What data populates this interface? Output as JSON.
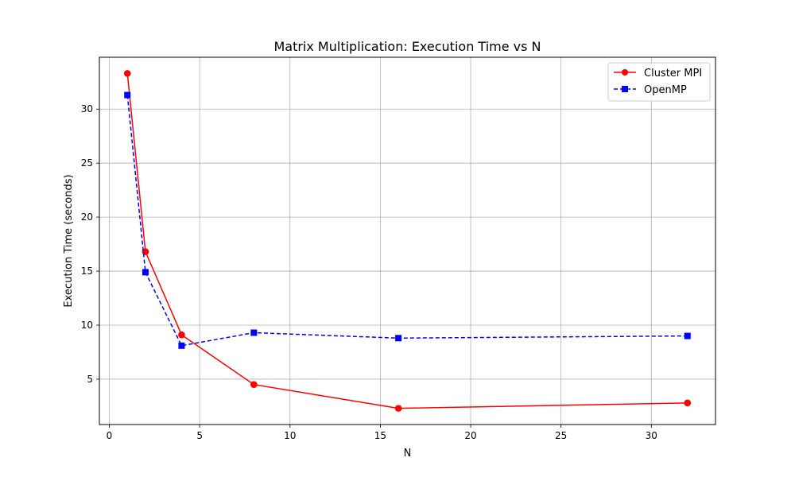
{
  "chart_data": {
    "type": "line",
    "title": "Matrix Multiplication: Execution Time vs N",
    "xlabel": "N",
    "ylabel": "Execution Time (seconds)",
    "xlim": [
      -0.55,
      33.55
    ],
    "ylim": [
      0.8,
      34.8
    ],
    "xticks": [
      0,
      5,
      10,
      15,
      20,
      25,
      30
    ],
    "yticks": [
      5,
      10,
      15,
      20,
      25,
      30
    ],
    "grid": true,
    "legend_position": "top-right",
    "x": [
      1,
      2,
      4,
      8,
      16,
      32
    ],
    "series": [
      {
        "name": "Cluster MPI",
        "values": [
          33.3,
          16.8,
          9.1,
          4.5,
          2.3,
          2.8
        ],
        "color": "#ff0000",
        "line_style": "solid",
        "marker": "circle"
      },
      {
        "name": "OpenMP",
        "values": [
          31.3,
          14.9,
          8.1,
          9.3,
          8.8,
          9.0
        ],
        "color": "#0000ff",
        "line_style": "dashed",
        "marker": "square"
      }
    ]
  }
}
